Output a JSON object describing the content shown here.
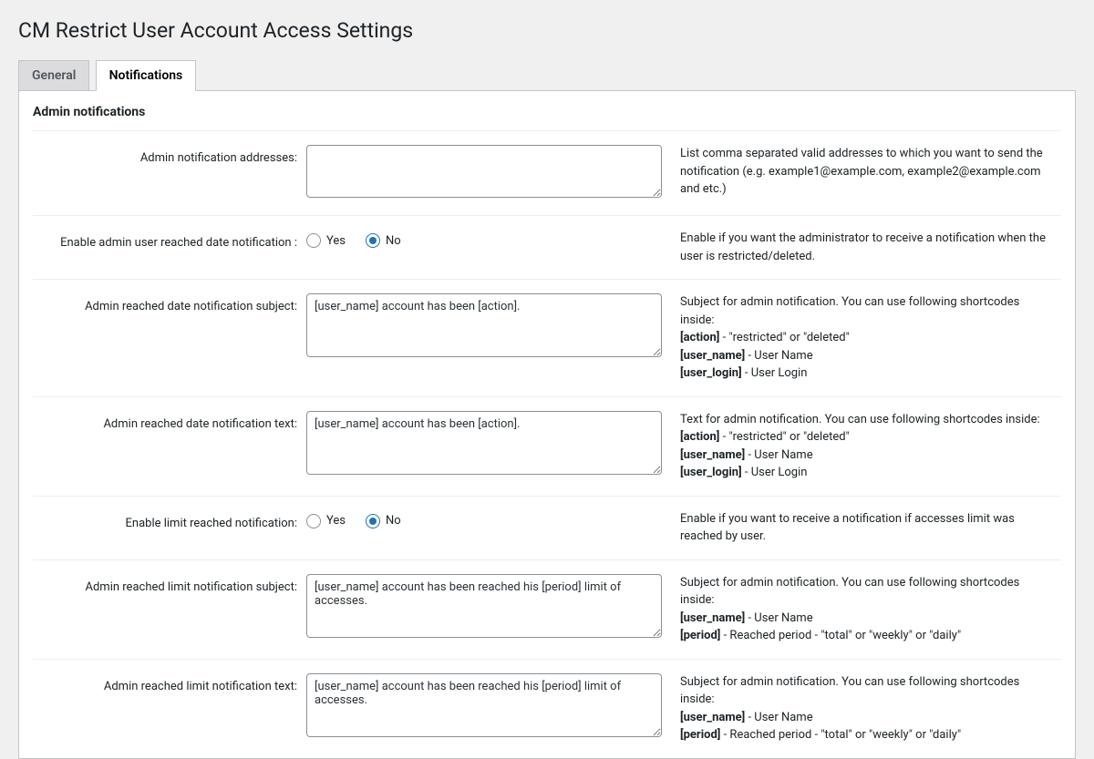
{
  "page": {
    "title": "CM Restrict User Account Access Settings"
  },
  "tabs": {
    "general": "General",
    "notifications": "Notifications",
    "active": "notifications"
  },
  "section": {
    "admin_notifications": "Admin notifications"
  },
  "labels": {
    "yes": "Yes",
    "no": "No"
  },
  "rows": {
    "addresses": {
      "label": "Admin notification addresses:",
      "value": "",
      "desc": "List comma separated valid addresses to which you want to send the notification (e.g. example1@example.com, example2@example.com and etc.)"
    },
    "enable_date": {
      "label": "Enable admin user reached date notification :",
      "value": "no",
      "desc": "Enable if you want the administrator to receive a notification when the user is restricted/deleted."
    },
    "date_subject": {
      "label": "Admin reached date notification subject:",
      "value": "[user_name] account has been [action]."
    },
    "date_text": {
      "label": "Admin reached date notification text:",
      "value": "[user_name] account has been [action]."
    },
    "enable_limit": {
      "label": "Enable limit reached notification:",
      "value": "no",
      "desc": "Enable if you want to receive a notification if accesses limit was reached by user."
    },
    "limit_subject": {
      "label": "Admin reached limit notification subject:",
      "value": "[user_name] account has been reached his [period] limit of accesses."
    },
    "limit_text": {
      "label": "Admin reached limit notification text:",
      "value": "[user_name] account has been reached his [period] limit of accesses."
    }
  },
  "desc_parts": {
    "subject_intro": "Subject for admin notification. You can use following shortcodes inside:",
    "text_intro": "Text for admin notification. You can use following shortcodes inside:",
    "action_k": "[action]",
    "action_v": " - \"restricted\" or \"deleted\"",
    "user_name_k": "[user_name]",
    "user_name_v": " - User Name",
    "user_login_k": "[user_login]",
    "user_login_v": " - User Login",
    "period_k": "[period]",
    "period_v": " - Reached period - \"total\" or \"weekly\" or \"daily\""
  }
}
